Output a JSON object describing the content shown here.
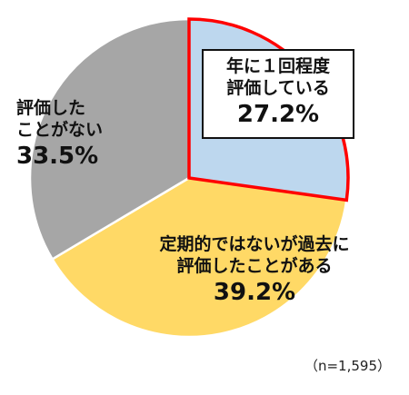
{
  "chart_data": {
    "type": "pie",
    "start_angle_deg": 0,
    "direction": "clockwise",
    "highlight_slice": 0,
    "slices": [
      {
        "lines": [
          "年に１回程度",
          "評価している"
        ],
        "value": 27.2,
        "value_label": "27.2%",
        "color": "#bdd7ee"
      },
      {
        "lines": [
          "定期的ではないが過去に",
          "評価したことがある"
        ],
        "value": 39.2,
        "value_label": "39.2%",
        "color": "#ffd966"
      },
      {
        "lines": [
          "評価した",
          "ことがない"
        ],
        "value": 33.5,
        "value_label": "33.5%",
        "color": "#a6a6a6"
      }
    ],
    "highlight_color": "#ff0000",
    "note": "（n=1,595）"
  }
}
